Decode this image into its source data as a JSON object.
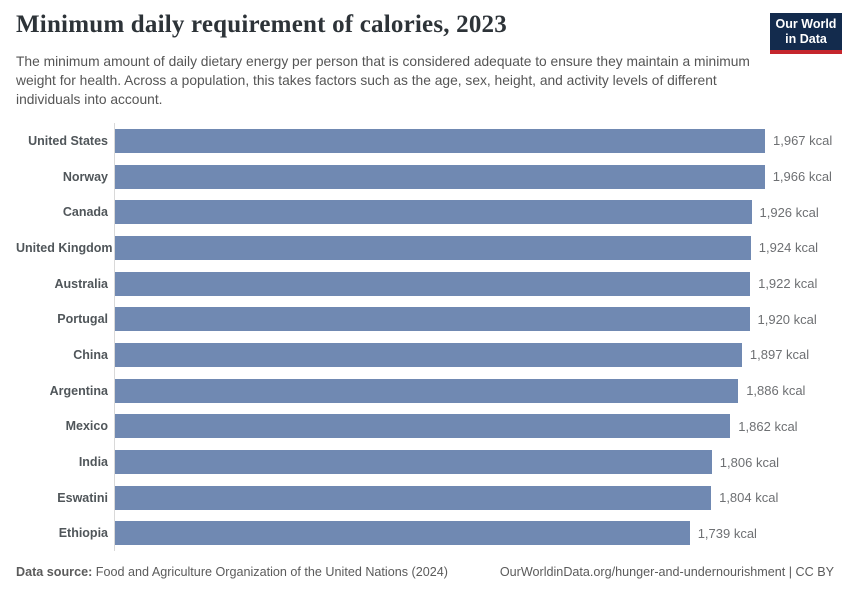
{
  "header": {
    "title": "Minimum daily requirement of calories, 2023",
    "subtitle": "The minimum amount of daily dietary energy per person that is considered adequate to ensure they maintain a minimum weight for health. Across a population, this takes factors such as the age, sex, height, and activity levels of different individuals into account.",
    "logo": {
      "line1": "Our World",
      "line2": "in Data"
    }
  },
  "chart_data": {
    "type": "bar",
    "orientation": "horizontal",
    "title": "Minimum daily requirement of calories, 2023",
    "categories": [
      "United States",
      "Norway",
      "Canada",
      "United Kingdom",
      "Australia",
      "Portugal",
      "China",
      "Argentina",
      "Mexico",
      "India",
      "Eswatini",
      "Ethiopia"
    ],
    "values": [
      1967,
      1966,
      1926,
      1924,
      1922,
      1920,
      1897,
      1886,
      1862,
      1806,
      1804,
      1739
    ],
    "value_labels": [
      "1,967 kcal",
      "1,966 kcal",
      "1,926 kcal",
      "1,924 kcal",
      "1,922 kcal",
      "1,920 kcal",
      "1,897 kcal",
      "1,886 kcal",
      "1,862 kcal",
      "1,806 kcal",
      "1,804 kcal",
      "1,739 kcal"
    ],
    "unit": "kcal",
    "xlabel": "",
    "ylabel": "",
    "xlim": [
      0,
      1967
    ],
    "grid": false,
    "legend": "none",
    "bar_color": "#7089b2",
    "axis_line_color": "#d9d9d9"
  },
  "footer": {
    "source_label": "Data source:",
    "source_text": " Food and Agriculture Organization of the United Nations (2024)",
    "link_text": "OurWorldinData.org/hunger-and-undernourishment | CC BY"
  },
  "colors": {
    "title": "#2d3338",
    "subtitle": "#555555",
    "logo_bg": "#132b4d",
    "logo_accent": "#c5262d",
    "value_label": "#6e7073",
    "country_label": "#50565a"
  }
}
